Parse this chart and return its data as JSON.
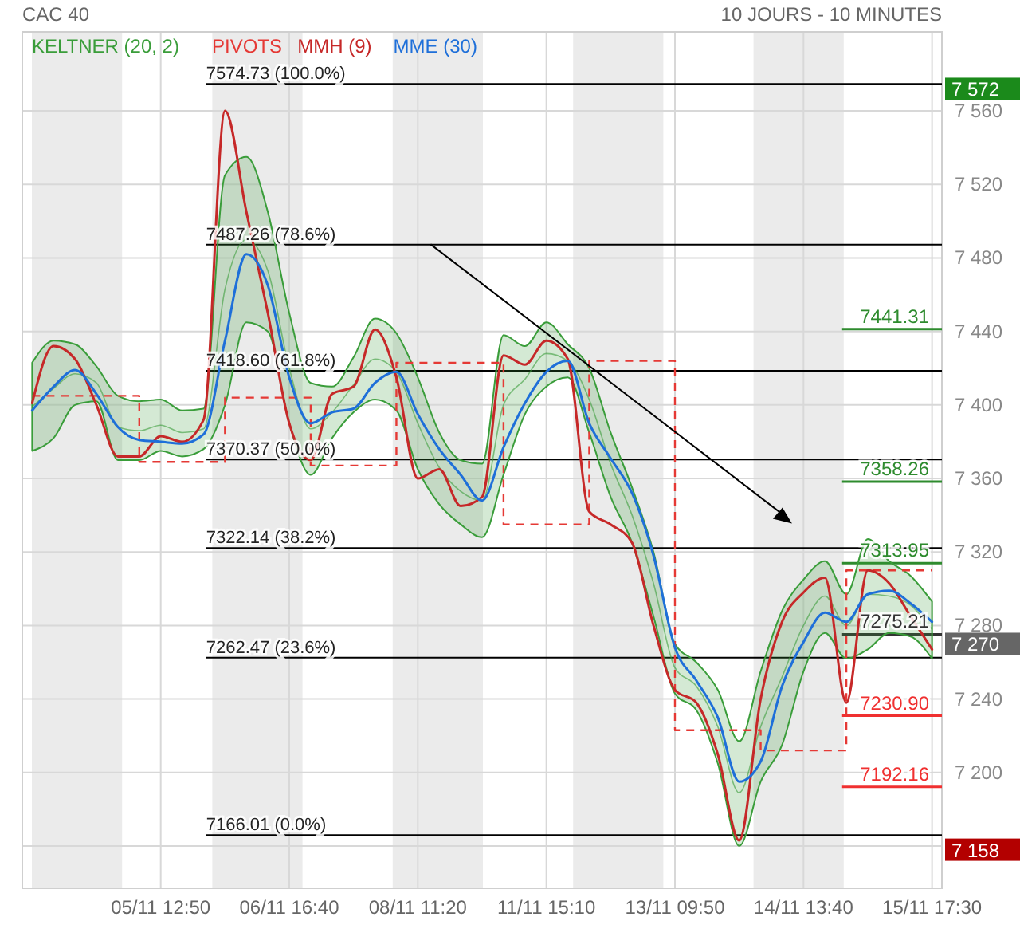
{
  "chart_data": {
    "type": "line",
    "title": "CAC 40",
    "subtitle": "10 JOURS - 10 MINUTES",
    "categories": [
      null,
      null,
      null,
      null,
      null,
      null,
      "05/11 12:50",
      null,
      null,
      null,
      null,
      null,
      "06/11 16:40",
      null,
      null,
      null,
      null,
      null,
      "08/11 11:20",
      null,
      null,
      null,
      null,
      null,
      "11/11 15:10",
      null,
      null,
      null,
      null,
      null,
      "13/11 09:50",
      null,
      null,
      null,
      null,
      null,
      "14/11 13:40",
      null,
      null,
      null,
      null,
      null,
      "15/11 17:30"
    ],
    "series": [
      {
        "name": "KELTNER (20, 2)",
        "color": "#3a9d3a",
        "values": [
          7399,
          7409,
          7417,
          7412,
          7388,
          7386,
          7389,
          7385,
          7387,
          7463,
          7490,
          7473,
          7420,
          7387,
          7396,
          7411,
          7425,
          7418,
          7390,
          7366,
          7353,
          7348,
          7400,
          7414,
          7428,
          7424,
          7403,
          7368,
          7340,
          7303,
          7257,
          7247,
          7225,
          7189,
          7225,
          7252,
          7280,
          7296,
          7280,
          7297,
          7296,
          7291,
          7278
        ],
        "upper": [
          7423,
          7435,
          7433,
          7421,
          7405,
          7402,
          7403,
          7397,
          7398,
          7525,
          7535,
          7505,
          7450,
          7412,
          7410,
          7426,
          7447,
          7439,
          7415,
          7385,
          7370,
          7368,
          7438,
          7432,
          7445,
          7433,
          7420,
          7385,
          7355,
          7320,
          7270,
          7260,
          7245,
          7217,
          7255,
          7288,
          7305,
          7315,
          7297,
          7327,
          7315,
          7307,
          7293
        ],
        "lower": [
          7375,
          7382,
          7400,
          7402,
          7370,
          7370,
          7375,
          7372,
          7376,
          7400,
          7445,
          7440,
          7390,
          7362,
          7382,
          7396,
          7403,
          7397,
          7365,
          7346,
          7335,
          7328,
          7362,
          7395,
          7410,
          7415,
          7385,
          7350,
          7325,
          7285,
          7243,
          7234,
          7205,
          7160,
          7195,
          7215,
          7255,
          7276,
          7262,
          7267,
          7276,
          7274,
          7262
        ]
      },
      {
        "name": "PIVOTS",
        "type": "step",
        "color": "#e53935",
        "line_style": "dashed",
        "values": [
          7405,
          7405,
          7405,
          7405,
          7405,
          7369,
          7369,
          7369,
          7369,
          7404,
          7404,
          7404,
          7404,
          7367,
          7367,
          7367,
          7367,
          7423,
          7423,
          7423,
          7423,
          7423,
          7335,
          7335,
          7335,
          7335,
          7424,
          7424,
          7424,
          7424,
          7223,
          7223,
          7223,
          7223,
          7212,
          7212,
          7212,
          7212,
          7310,
          7310,
          7310,
          7310,
          7310
        ]
      },
      {
        "name": "MMH (9)",
        "color": "#c62828",
        "values": [
          7401,
          7432,
          7425,
          7400,
          7372,
          7372,
          7383,
          7380,
          7392,
          7560,
          7505,
          7450,
          7390,
          7370,
          7406,
          7410,
          7441,
          7415,
          7360,
          7365,
          7345,
          7350,
          7427,
          7422,
          7435,
          7425,
          7342,
          7335,
          7325,
          7280,
          7245,
          7238,
          7210,
          7163,
          7240,
          7282,
          7298,
          7306,
          7238,
          7310,
          7303,
          7285,
          7267
        ]
      },
      {
        "name": "MME (30)",
        "color": "#1e6fd9",
        "values": [
          7397,
          7410,
          7419,
          7406,
          7388,
          7381,
          7380,
          7379,
          7384,
          7435,
          7482,
          7465,
          7415,
          7390,
          7396,
          7398,
          7412,
          7418,
          7395,
          7376,
          7362,
          7348,
          7377,
          7401,
          7418,
          7424,
          7390,
          7371,
          7352,
          7318,
          7268,
          7250,
          7230,
          7195,
          7206,
          7247,
          7271,
          7287,
          7282,
          7297,
          7299,
          7292,
          7282
        ]
      }
    ],
    "ylim": [
      7137,
      7603
    ],
    "yticks": [
      {
        "value": 7160,
        "label": null
      },
      {
        "value": 7200,
        "label": "7 200"
      },
      {
        "value": 7240,
        "label": "7 240"
      },
      {
        "value": 7280,
        "label": "7 280"
      },
      {
        "value": 7320,
        "label": "7 320"
      },
      {
        "value": 7360,
        "label": "7 360"
      },
      {
        "value": 7400,
        "label": "7 400"
      },
      {
        "value": 7440,
        "label": "7 440"
      },
      {
        "value": 7480,
        "label": "7 480"
      },
      {
        "value": 7520,
        "label": "7 520"
      },
      {
        "value": 7560,
        "label": "7 560"
      }
    ],
    "ref_lines": [
      {
        "axis": "y",
        "value": 7574.73,
        "label": "7574.73 (100.0%)"
      },
      {
        "axis": "y",
        "value": 7487.26,
        "label": "7487.26 (78.6%)"
      },
      {
        "axis": "y",
        "value": 7418.6,
        "label": "7418.60 (61.8%)"
      },
      {
        "axis": "y",
        "value": 7370.37,
        "label": "7370.37 (50.0%)"
      },
      {
        "axis": "y",
        "value": 7322.14,
        "label": "7322.14 (38.2%)"
      },
      {
        "axis": "y",
        "value": 7262.47,
        "label": "7262.47 (23.6%)"
      },
      {
        "axis": "y",
        "value": 7166.01,
        "label": "7166.01 (0.0%)"
      },
      {
        "axis": "y",
        "value": 7441.31,
        "label": "7441.31",
        "color": "#2e8b2e"
      },
      {
        "axis": "y",
        "value": 7358.26,
        "label": "7358.26",
        "color": "#2e8b2e"
      },
      {
        "axis": "y",
        "value": 7313.95,
        "label": "7313.95",
        "color": "#2e8b2e"
      },
      {
        "axis": "y",
        "value": 7275.21,
        "label": "7275.21",
        "color": "#333333"
      },
      {
        "axis": "y",
        "value": 7230.9,
        "label": "7230.90",
        "color": "#f03030"
      },
      {
        "axis": "y",
        "value": 7192.16,
        "label": "7192.16",
        "color": "#f03030"
      }
    ],
    "y2lim": [
      7137,
      7603
    ],
    "y2ticks": [
      {
        "value": 7572,
        "label": "7 572"
      },
      {
        "value": 7270,
        "label": "7 270"
      },
      {
        "value": 7158,
        "label": "7 158"
      }
    ],
    "grid": true,
    "legend": "top left"
  }
}
